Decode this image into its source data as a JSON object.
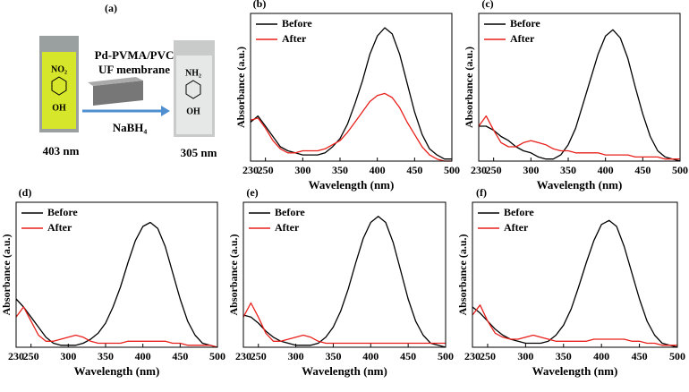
{
  "schematic": {
    "label": "(a)",
    "membrane_line1": "Pd-PVMA/PVC",
    "membrane_line2": "UF membrane",
    "reagent": "NaBH₄",
    "left_group_top": "NO₂",
    "left_group_bottom": "OH",
    "right_group_top": "NH₂",
    "right_group_bottom": "OH",
    "left_wavelength": "403 nm",
    "right_wavelength": "305 nm"
  },
  "chart_data": [
    {
      "type": "line",
      "panel": "(b)",
      "xlabel": "Wavelength (nm)",
      "ylabel": "Absorbance (a.u.)",
      "legend": "upper left",
      "x": [
        230,
        240,
        250,
        260,
        270,
        280,
        290,
        300,
        310,
        320,
        330,
        340,
        350,
        360,
        370,
        380,
        390,
        400,
        410,
        420,
        430,
        440,
        450,
        460,
        470,
        480,
        490,
        500
      ],
      "xlim": [
        230,
        500
      ],
      "xticks": [
        250,
        300,
        350,
        400,
        450,
        500
      ],
      "ylim": [
        0,
        0.72
      ],
      "series": [
        {
          "name": "Before",
          "color": "#000000",
          "values": [
            0.19,
            0.22,
            0.17,
            0.12,
            0.07,
            0.05,
            0.04,
            0.03,
            0.03,
            0.03,
            0.04,
            0.07,
            0.11,
            0.18,
            0.28,
            0.39,
            0.52,
            0.61,
            0.65,
            0.62,
            0.52,
            0.38,
            0.24,
            0.13,
            0.06,
            0.03,
            0.01,
            0.01
          ]
        },
        {
          "name": "After",
          "color": "#e8201b",
          "values": [
            0.2,
            0.21,
            0.16,
            0.1,
            0.06,
            0.04,
            0.04,
            0.05,
            0.05,
            0.05,
            0.06,
            0.08,
            0.1,
            0.14,
            0.19,
            0.24,
            0.29,
            0.32,
            0.33,
            0.31,
            0.26,
            0.19,
            0.13,
            0.07,
            0.03,
            0.01,
            0,
            0
          ]
        }
      ]
    },
    {
      "type": "line",
      "panel": "(c)",
      "xlabel": "Wavelength (nm)",
      "ylabel": "Absorbance (a.u.)",
      "legend": "upper left",
      "x": [
        230,
        240,
        250,
        260,
        270,
        280,
        290,
        300,
        310,
        320,
        330,
        340,
        350,
        360,
        370,
        380,
        390,
        400,
        410,
        420,
        430,
        440,
        450,
        460,
        470,
        480,
        490,
        500
      ],
      "xlim": [
        230,
        500
      ],
      "xticks": [
        250,
        300,
        350,
        400,
        450,
        500
      ],
      "ylim": [
        0,
        0.72
      ],
      "series": [
        {
          "name": "Before",
          "color": "#000000",
          "values": [
            0.17,
            0.17,
            0.15,
            0.12,
            0.1,
            0.07,
            0.05,
            0.04,
            0.02,
            0.01,
            0.01,
            0.03,
            0.08,
            0.16,
            0.28,
            0.4,
            0.52,
            0.61,
            0.64,
            0.6,
            0.5,
            0.36,
            0.23,
            0.12,
            0.05,
            0.02,
            0.01,
            0
          ]
        },
        {
          "name": "After",
          "color": "#e8201b",
          "values": [
            0.17,
            0.22,
            0.15,
            0.09,
            0.07,
            0.07,
            0.09,
            0.1,
            0.09,
            0.08,
            0.06,
            0.05,
            0.05,
            0.04,
            0.04,
            0.04,
            0.04,
            0.03,
            0.03,
            0.03,
            0.03,
            0.02,
            0.02,
            0.02,
            0.02,
            0.01,
            0.01,
            0.01
          ]
        }
      ]
    },
    {
      "type": "line",
      "panel": "(d)",
      "xlabel": "Wavelength (nm)",
      "ylabel": "Absorbance (a.u.)",
      "legend": "upper left",
      "x": [
        230,
        240,
        250,
        260,
        270,
        280,
        290,
        300,
        310,
        320,
        330,
        340,
        350,
        360,
        370,
        380,
        390,
        400,
        410,
        420,
        430,
        440,
        450,
        460,
        470,
        480,
        490,
        500
      ],
      "xlim": [
        230,
        500
      ],
      "xticks": [
        250,
        300,
        350,
        400,
        450,
        500
      ],
      "ylim": [
        0,
        0.72
      ],
      "series": [
        {
          "name": "Before",
          "color": "#000000",
          "values": [
            0.24,
            0.2,
            0.15,
            0.1,
            0.05,
            0.02,
            0.01,
            0.01,
            0.01,
            0.02,
            0.04,
            0.07,
            0.12,
            0.2,
            0.3,
            0.42,
            0.53,
            0.6,
            0.62,
            0.59,
            0.5,
            0.37,
            0.24,
            0.13,
            0.06,
            0.02,
            0.01,
            0
          ]
        },
        {
          "name": "After",
          "color": "#e8201b",
          "values": [
            0.15,
            0.2,
            0.13,
            0.06,
            0.03,
            0.03,
            0.04,
            0.05,
            0.06,
            0.05,
            0.03,
            0.02,
            0.02,
            0.02,
            0.02,
            0.03,
            0.03,
            0.03,
            0.03,
            0.03,
            0.03,
            0.02,
            0.02,
            0.01,
            0.01,
            0.01,
            0.01,
            0
          ]
        }
      ]
    },
    {
      "type": "line",
      "panel": "(e)",
      "xlabel": "Wavelength (nm)",
      "ylabel": "Absorbance (a.u.)",
      "legend": "upper left",
      "x": [
        230,
        240,
        250,
        260,
        270,
        280,
        290,
        300,
        310,
        320,
        330,
        340,
        350,
        360,
        370,
        380,
        390,
        400,
        410,
        420,
        430,
        440,
        450,
        460,
        470,
        480,
        490,
        500
      ],
      "xlim": [
        230,
        500
      ],
      "xticks": [
        250,
        300,
        350,
        400,
        450,
        500
      ],
      "ylim": [
        0,
        0.72
      ],
      "series": [
        {
          "name": "Before",
          "color": "#000000",
          "values": [
            0.16,
            0.15,
            0.12,
            0.08,
            0.05,
            0.03,
            0.02,
            0.01,
            0.01,
            0.01,
            0.02,
            0.05,
            0.1,
            0.18,
            0.29,
            0.42,
            0.54,
            0.62,
            0.65,
            0.62,
            0.52,
            0.38,
            0.24,
            0.13,
            0.06,
            0.02,
            0.01,
            0
          ]
        },
        {
          "name": "After",
          "color": "#e8201b",
          "values": [
            0.15,
            0.22,
            0.15,
            0.07,
            0.03,
            0.03,
            0.04,
            0.05,
            0.06,
            0.05,
            0.03,
            0.02,
            0.02,
            0.02,
            0.02,
            0.02,
            0.02,
            0.02,
            0.02,
            0.02,
            0.02,
            0.02,
            0.02,
            0.02,
            0.02,
            0.02,
            0.02,
            0.02
          ]
        }
      ]
    },
    {
      "type": "line",
      "panel": "(f)",
      "xlabel": "Wavelength (nm)",
      "ylabel": "Absorbance (a.u.)",
      "legend": "upper left",
      "x": [
        230,
        240,
        250,
        260,
        270,
        280,
        290,
        300,
        310,
        320,
        330,
        340,
        350,
        360,
        370,
        380,
        390,
        400,
        410,
        420,
        430,
        440,
        450,
        460,
        470,
        480,
        490,
        500
      ],
      "xlim": [
        230,
        500
      ],
      "xticks": [
        250,
        300,
        350,
        400,
        450,
        500
      ],
      "ylim": [
        0,
        0.72
      ],
      "series": [
        {
          "name": "Before",
          "color": "#000000",
          "values": [
            0.2,
            0.17,
            0.13,
            0.09,
            0.06,
            0.04,
            0.03,
            0.02,
            0.02,
            0.02,
            0.03,
            0.06,
            0.11,
            0.19,
            0.3,
            0.42,
            0.53,
            0.61,
            0.63,
            0.6,
            0.5,
            0.37,
            0.24,
            0.13,
            0.06,
            0.02,
            0.01,
            0
          ]
        },
        {
          "name": "After",
          "color": "#e8201b",
          "values": [
            0.16,
            0.21,
            0.13,
            0.07,
            0.05,
            0.04,
            0.04,
            0.05,
            0.06,
            0.05,
            0.04,
            0.03,
            0.03,
            0.03,
            0.03,
            0.03,
            0.04,
            0.04,
            0.04,
            0.04,
            0.04,
            0.03,
            0.03,
            0.02,
            0.02,
            0.01,
            0.01,
            0.01
          ]
        }
      ]
    }
  ]
}
